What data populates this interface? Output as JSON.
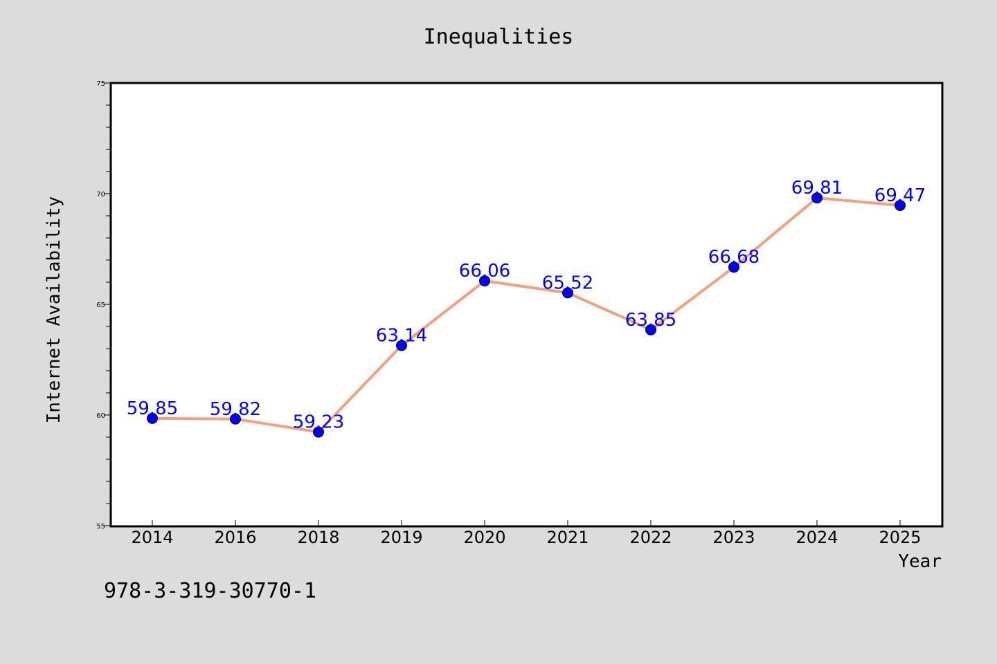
{
  "chart_data": {
    "type": "line",
    "title": "Inequalities",
    "xlabel": "Year",
    "ylabel": "Internet Availability",
    "categories": [
      "2014",
      "2016",
      "2018",
      "2019",
      "2020",
      "2021",
      "2022",
      "2023",
      "2024",
      "2025"
    ],
    "series": [
      {
        "values": [
          59.85,
          59.82,
          59.23,
          63.14,
          66.06,
          65.52,
          63.85,
          66.68,
          69.81,
          69.47
        ]
      }
    ],
    "data_labels": [
      "59.85",
      "59.82",
      "59.23",
      "63.14",
      "66.06",
      "65.52",
      "63.85",
      "66.68",
      "69.81",
      "69.47"
    ],
    "ylim": [
      55,
      75
    ],
    "yticks": [
      "55",
      "60",
      "65",
      "70",
      "75"
    ],
    "grid": false,
    "line_color": "#f4a07c",
    "marker_color": "#0000ff",
    "label_color": "#0000ff",
    "background_color": "#dcdcdc",
    "plot_background": "#ffffff"
  },
  "footnote": "978-3-319-30770-1"
}
